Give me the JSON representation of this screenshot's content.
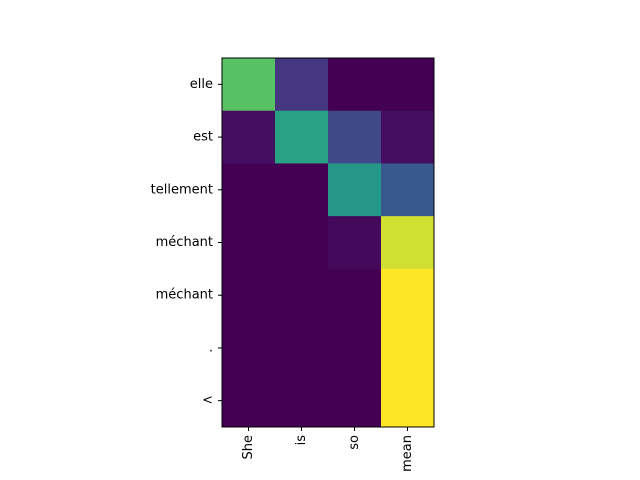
{
  "chart_data": {
    "type": "heatmap",
    "title": "",
    "xlabel": "",
    "ylabel": "",
    "colormap": "viridis",
    "x_categories": [
      "She",
      "is",
      "so",
      "mean"
    ],
    "y_categories": [
      "elle",
      "est",
      "tellement",
      "méchant",
      "méchant",
      ".",
      "<"
    ],
    "values": [
      [
        0.8,
        0.2,
        0.0,
        0.0
      ],
      [
        0.05,
        0.68,
        0.28,
        0.05
      ],
      [
        0.0,
        0.0,
        0.65,
        0.35
      ],
      [
        0.0,
        0.0,
        0.03,
        0.95
      ],
      [
        0.0,
        0.0,
        0.0,
        1.0
      ],
      [
        0.0,
        0.0,
        0.0,
        1.0
      ],
      [
        0.0,
        0.0,
        0.0,
        1.0
      ]
    ],
    "value_range": [
      0,
      1
    ],
    "grid": false,
    "legend": "none"
  }
}
